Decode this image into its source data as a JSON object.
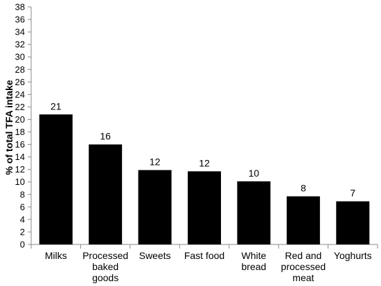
{
  "chart_data": {
    "type": "bar",
    "title": "",
    "xlabel": "",
    "ylabel": "% of total TFA intake",
    "ylim": [
      0,
      38
    ],
    "ytick_step": 2,
    "grid": false,
    "categories": [
      [
        "Milks"
      ],
      [
        "Processed",
        "baked",
        "goods"
      ],
      [
        "Sweets"
      ],
      [
        "Fast food"
      ],
      [
        "White",
        "bread"
      ],
      [
        "Red and",
        "processed",
        "meat"
      ],
      [
        "Yoghurts"
      ]
    ],
    "values": [
      20.8,
      16.0,
      11.9,
      11.7,
      10.1,
      7.7,
      6.9
    ],
    "data_labels": [
      "21",
      "16",
      "12",
      "12",
      "10",
      "8",
      "7"
    ],
    "bar_color": "#000000"
  }
}
